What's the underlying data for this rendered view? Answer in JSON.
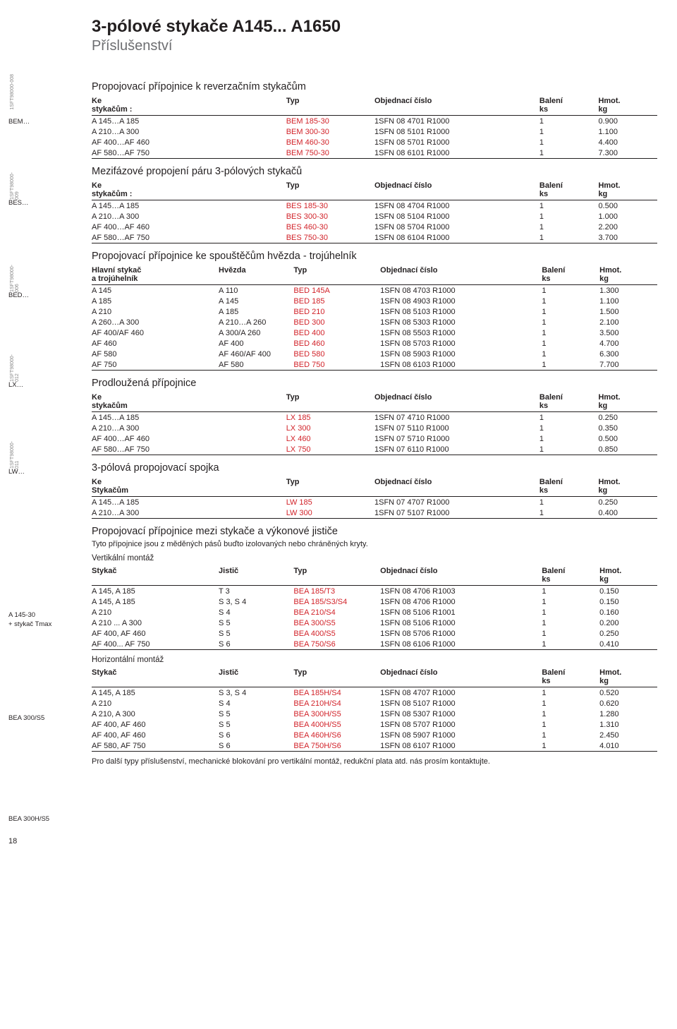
{
  "page_title": "3-pólové stykače A145... A1650",
  "page_subtitle": "Příslušenství",
  "page_number": "18",
  "colors": {
    "accent_red": "#d2232a",
    "text": "#231f20",
    "muted": "#6d6e71"
  },
  "left_labels": {
    "bem": "BEM…",
    "bem_code": "1SFT98000-008",
    "bes": "BES…",
    "bes_code": "1SFT98000-009",
    "bed": "BED…",
    "bed_code": "1SFT98000-006",
    "lx": "LX…",
    "lx_code": "1SFT98000-012",
    "lw": "LW…",
    "lw_code": "1SFT98000-011",
    "a145": "A 145-30",
    "a145b": "+ stykač Tmax",
    "bea300s5": "BEA 300/S5",
    "bea300hs5": "BEA 300H/S5"
  },
  "sections": [
    {
      "title": "Propojovací přípojnice k reverzačním stykačům",
      "headers": [
        [
          "Ke",
          "stykačům :"
        ],
        [
          "Typ",
          ""
        ],
        [
          "Objednací číslo",
          "",
          ""
        ],
        [
          "Balení",
          "ks"
        ],
        [
          "Hmot.",
          "kg"
        ]
      ],
      "rows": [
        [
          "A 145…A 185",
          "BEM 185-30",
          "1SFN 08 4701 R1000",
          "1",
          "0.900"
        ],
        [
          "A 210…A 300",
          "BEM 300-30",
          "1SFN 08 5101 R1000",
          "1",
          "1.100"
        ],
        [
          "AF 400…AF 460",
          "BEM 460-30",
          "1SFN 08 5701 R1000",
          "1",
          "4.400"
        ],
        [
          "AF 580…AF 750",
          "BEM 750-30",
          "1SFN 08 6101 R1000",
          "1",
          "7.300"
        ]
      ]
    },
    {
      "title": "Mezifázové propojení páru 3-pólových stykačů",
      "headers": [
        [
          "Ke",
          "stykačům :"
        ],
        [
          "Typ",
          ""
        ],
        [
          "Objednací číslo",
          ""
        ],
        [
          "Balení",
          "ks"
        ],
        [
          "Hmot.",
          "kg"
        ]
      ],
      "rows": [
        [
          "A 145…A 185",
          "BES 185-30",
          "1SFN 08 4704 R1000",
          "1",
          "0.500"
        ],
        [
          "A 210…A 300",
          "BES 300-30",
          "1SFN 08 5104 R1000",
          "1",
          "1.000"
        ],
        [
          "AF 400…AF 460",
          "BES 460-30",
          "1SFN 08 5704 R1000",
          "1",
          "2.200"
        ],
        [
          "AF 580…AF 750",
          "BES 750-30",
          "1SFN 08 6104 R1000",
          "1",
          "3.700"
        ]
      ]
    },
    {
      "title": "Propojovací přípojnice ke spouštěčům hvězda - trojúhelník",
      "headers": [
        [
          "Hlavní stykač",
          "a trojúhelník"
        ],
        [
          "",
          "Hvězda"
        ],
        [
          "Typ",
          ""
        ],
        [
          "Objednací číslo",
          ""
        ],
        [
          "Balení",
          "ks"
        ],
        [
          "Hmot.",
          "kg"
        ]
      ],
      "wide": true,
      "rows": [
        [
          "A 145",
          "A 110",
          "BED 145A",
          "1SFN 08 4703 R1000",
          "1",
          "1.300"
        ],
        [
          "A 185",
          "A 145",
          "BED 185",
          "1SFN 08 4903 R1000",
          "1",
          "1.100"
        ],
        [
          "A 210",
          "A 185",
          "BED 210",
          "1SFN 08 5103 R1000",
          "1",
          "1.500"
        ],
        [
          "A 260…A 300",
          "A 210…A 260",
          "BED 300",
          "1SFN 08 5303 R1000",
          "1",
          "2.100"
        ],
        [
          "AF 400/AF 460",
          "A 300/A 260",
          "BED 400",
          "1SFN 08 5503 R1000",
          "1",
          "3.500"
        ],
        [
          "AF 460",
          "AF 400",
          "BED 460",
          "1SFN 08 5703 R1000",
          "1",
          "4.700"
        ],
        [
          "AF 580",
          "AF 460/AF 400",
          "BED 580",
          "1SFN 08 5903 R1000",
          "1",
          "6.300"
        ],
        [
          "AF 750",
          "AF 580",
          "BED 750",
          "1SFN 08 6103 R1000",
          "1",
          "7.700"
        ]
      ]
    },
    {
      "title": "Prodloužená přípojnice",
      "headers": [
        [
          "Ke",
          "stykačům"
        ],
        [
          "Typ",
          ""
        ],
        [
          "Objednací číslo",
          ""
        ],
        [
          "Balení",
          "ks"
        ],
        [
          "Hmot.",
          "kg"
        ]
      ],
      "rows": [
        [
          "A 145…A 185",
          "LX 185",
          "1SFN 07 4710 R1000",
          "1",
          "0.250"
        ],
        [
          "A 210…A 300",
          "LX 300",
          "1SFN 07 5110 R1000",
          "1",
          "0.350"
        ],
        [
          "AF 400…AF 460",
          "LX 460",
          "1SFN 07 5710 R1000",
          "1",
          "0.500"
        ],
        [
          "AF 580…AF 750",
          "LX 750",
          "1SFN 07 6110 R1000",
          "1",
          "0.850"
        ]
      ]
    },
    {
      "title": "3-pólová propojovací spojka",
      "headers": [
        [
          "Ke",
          "Stykačům"
        ],
        [
          "Typ",
          ""
        ],
        [
          "Objednací číslo",
          ""
        ],
        [
          "Balení",
          "ks"
        ],
        [
          "Hmot.",
          "kg"
        ]
      ],
      "rows": [
        [
          "A 145…A 185",
          "LW 185",
          "1SFN 07 4707 R1000",
          "1",
          "0.250"
        ],
        [
          "A 210…A 300",
          "LW 300",
          "1SFN 07 5107 R1000",
          "1",
          "0.400"
        ]
      ]
    },
    {
      "title": "Propojovací přípojnice mezi stykače a výkonové jističe",
      "sub": "Tyto přípojnice jsou z měděných pásů buďto izolovaných nebo chráněných kryty.",
      "subtitle": "Vertikální montáž",
      "headers": [
        [
          "Stykač",
          ""
        ],
        [
          "Jistič",
          ""
        ],
        [
          "Typ",
          ""
        ],
        [
          "Objednací číslo",
          ""
        ],
        [
          "Balení",
          "ks"
        ],
        [
          "Hmot.",
          "kg"
        ]
      ],
      "wide": true,
      "rows": [
        [
          "A 145, A 185",
          "T 3",
          "BEA 185/T3",
          "1SFN 08 4706 R1003",
          "1",
          "0.150"
        ],
        [
          "A 145, A 185",
          "S 3, S 4",
          "BEA 185/S3/S4",
          "1SFN 08 4706 R1000",
          "1",
          "0.150"
        ],
        [
          "A 210",
          "S 4",
          "BEA 210/S4",
          "1SFN 08 5106 R1001",
          "1",
          "0.160"
        ],
        [
          "A 210 ... A 300",
          "S 5",
          "BEA 300/S5",
          "1SFN 08 5106 R1000",
          "1",
          "0.200"
        ],
        [
          "AF 400, AF 460",
          "S 5",
          "BEA 400/S5",
          "1SFN 08 5706 R1000",
          "1",
          "0.250"
        ],
        [
          "AF 400... AF 750",
          "S 6",
          "BEA 750/S6",
          "1SFN 08 6106 R1000",
          "1",
          "0.410"
        ]
      ]
    },
    {
      "subtitle": "Horizontální montáž",
      "headers": [
        [
          "Stykač",
          ""
        ],
        [
          "Jistič",
          ""
        ],
        [
          "Typ",
          ""
        ],
        [
          "Objednací číslo",
          ""
        ],
        [
          "Balení",
          "ks"
        ],
        [
          "Hmot.",
          "kg"
        ]
      ],
      "wide": true,
      "rows": [
        [
          "A 145, A 185",
          "S 3, S 4",
          "BEA 185H/S4",
          "1SFN 08 4707 R1000",
          "1",
          "0.520"
        ],
        [
          "A 210",
          "S 4",
          "BEA 210H/S4",
          "1SFN 08 5107 R1000",
          "1",
          "0.620"
        ],
        [
          "A 210, A 300",
          "S 5",
          "BEA 300H/S5",
          "1SFN 08 5307 R1000",
          "1",
          "1.280"
        ],
        [
          "AF 400, AF 460",
          "S 5",
          "BEA 400H/S5",
          "1SFN 08 5707 R1000",
          "1",
          "1.310"
        ],
        [
          "AF 400, AF 460",
          "S 6",
          "BEA 460H/S6",
          "1SFN 08 5907 R1000",
          "1",
          "2.450"
        ],
        [
          "AF 580, AF 750",
          "S 6",
          "BEA 750H/S6",
          "1SFN 08 6107 R1000",
          "1",
          "4.010"
        ]
      ]
    }
  ],
  "footnote": "Pro další typy příslušenství, mechanické blokování pro vertikální montáž, redukční plata atd. nás prosím kontaktujte."
}
